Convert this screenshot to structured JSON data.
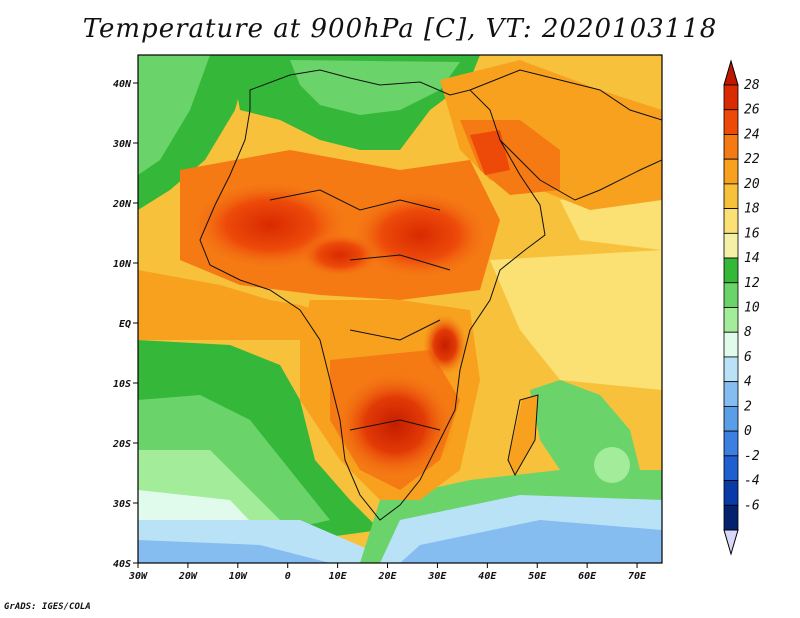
{
  "title": "Temperature at 900hPa [C], VT: 2020103118",
  "credit": "GrADS: IGES/COLA",
  "map": {
    "lon_labels": [
      "30W",
      "20W",
      "10W",
      "0",
      "10E",
      "20E",
      "30E",
      "40E",
      "50E",
      "60E",
      "70E"
    ],
    "lat_labels": [
      "40N",
      "30N",
      "20N",
      "10N",
      "EQ",
      "10S",
      "20S",
      "30S",
      "40S"
    ],
    "lon_range": [
      -30,
      75
    ],
    "lat_range": [
      -40,
      45
    ]
  },
  "colorbar": {
    "labels": [
      "28",
      "26",
      "24",
      "22",
      "20",
      "18",
      "16",
      "14",
      "12",
      "10",
      "8",
      "6",
      "4",
      "2",
      "0",
      "-2",
      "-4",
      "-6"
    ],
    "colors": [
      "#d92a00",
      "#ed4a0a",
      "#f57a14",
      "#f7a11e",
      "#f7c13c",
      "#fbe073",
      "#f5f0a8",
      "#35b83a",
      "#6ad46a",
      "#a2ec9a",
      "#e0fbeb",
      "#b9e2f7",
      "#85bdf0",
      "#5a9ee8",
      "#3c7fe0",
      "#205fd0",
      "#0a3aa8",
      "#062070"
    ],
    "over_color": "#c01800",
    "under_color": "#d8d8f8"
  }
}
